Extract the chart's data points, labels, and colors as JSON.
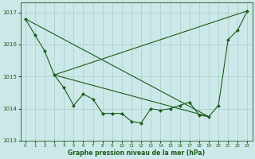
{
  "xlabel": "Graphe pression niveau de la mer (hPa)",
  "xlim": [
    -0.5,
    23.5
  ],
  "ylim": [
    1013.0,
    1017.3
  ],
  "yticks": [
    1013,
    1014,
    1015,
    1016,
    1017
  ],
  "xticks": [
    0,
    1,
    2,
    3,
    4,
    5,
    6,
    7,
    8,
    9,
    10,
    11,
    12,
    13,
    14,
    15,
    16,
    17,
    18,
    19,
    20,
    21,
    22,
    23
  ],
  "bg_color": "#cce8e8",
  "grid_color": "#aacccc",
  "line_color": "#1a5c1a",
  "series_detail": {
    "x": [
      0,
      1,
      2,
      3,
      4,
      5,
      6,
      7,
      8,
      9,
      10,
      11,
      12,
      13,
      14,
      15,
      16,
      17,
      18,
      19,
      20,
      21,
      22,
      23
    ],
    "y": [
      1016.8,
      1016.3,
      1015.8,
      1015.05,
      1014.65,
      1014.1,
      1014.45,
      1014.3,
      1013.85,
      1013.85,
      1013.85,
      1013.6,
      1013.55,
      1014.0,
      1013.95,
      1014.0,
      1014.1,
      1014.2,
      1013.8,
      1013.75,
      1014.1,
      1016.15,
      1016.45,
      1017.05
    ]
  },
  "series_rising": {
    "x": [
      3,
      23
    ],
    "y": [
      1015.05,
      1017.05
    ]
  },
  "series_falling": {
    "x": [
      0,
      19
    ],
    "y": [
      1016.8,
      1013.75
    ]
  },
  "series_mid": {
    "x": [
      3,
      19
    ],
    "y": [
      1015.05,
      1013.75
    ]
  }
}
